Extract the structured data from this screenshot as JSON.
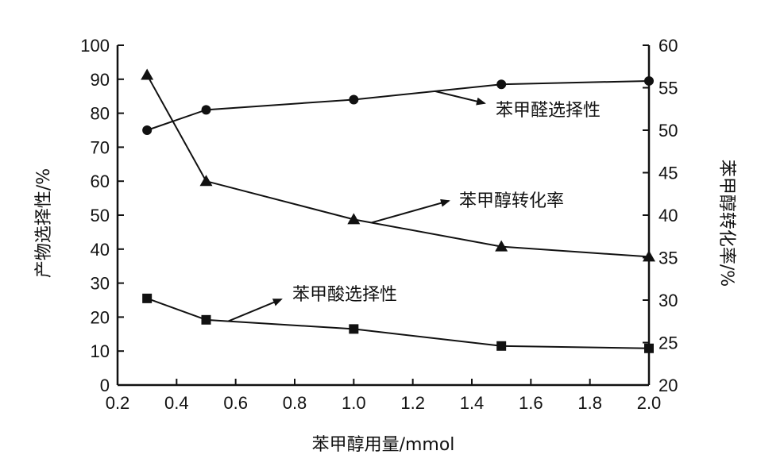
{
  "chart_data": {
    "type": "line",
    "x": [
      0.3,
      0.5,
      1.0,
      1.5,
      2.0
    ],
    "xlabel": "苯甲醇用量/mmol",
    "ylabel_left": "产物选择性/%",
    "ylabel_right": "苯甲醇转化率/%",
    "xlim": [
      0.2,
      2.0
    ],
    "xticks": [
      "0.2",
      "0.4",
      "0.6",
      "0.8",
      "1.0",
      "1.2",
      "1.4",
      "1.6",
      "1.8",
      "2.0"
    ],
    "ylim_left": [
      0,
      100
    ],
    "yticks_left": [
      "0",
      "10",
      "20",
      "30",
      "40",
      "50",
      "60",
      "70",
      "80",
      "90",
      "100"
    ],
    "ylim_right": [
      20,
      60
    ],
    "yticks_right": [
      "20",
      "25",
      "30",
      "35",
      "40",
      "45",
      "50",
      "55",
      "60"
    ],
    "grid": false,
    "series": [
      {
        "name": "苯甲醛选择性",
        "axis": "left",
        "marker": "circle",
        "values": [
          75,
          81,
          84,
          88.5,
          89.5
        ]
      },
      {
        "name": "苯甲醇转化率",
        "axis": "right",
        "marker": "triangle",
        "values": [
          56.5,
          44,
          39.5,
          36.3,
          35.1
        ]
      },
      {
        "name": "苯甲酸选择性",
        "axis": "left",
        "marker": "square",
        "values": [
          25.5,
          19.2,
          16.5,
          11.5,
          10.8
        ]
      }
    ]
  }
}
